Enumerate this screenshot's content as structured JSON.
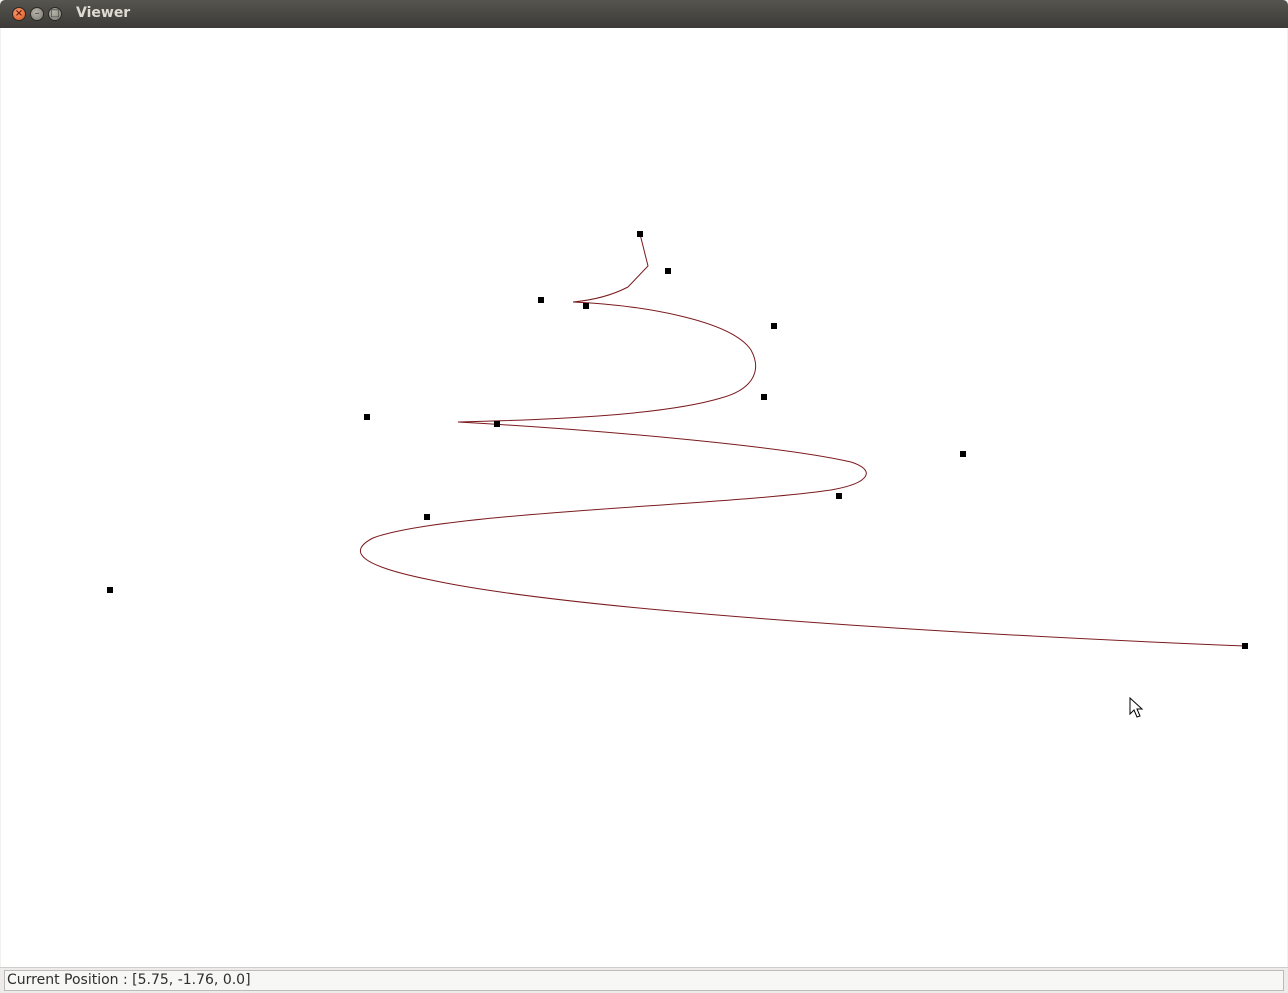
{
  "window": {
    "title": "Viewer",
    "close_glyph": "×",
    "minimize_glyph": "–",
    "maximize_glyph": "□"
  },
  "viewport": {
    "curve_color": "#7b1a1e",
    "point_color": "#000000",
    "background": "#ffffff"
  },
  "status": {
    "text": "Current Position : [5.75, -1.76, 0.0]"
  }
}
